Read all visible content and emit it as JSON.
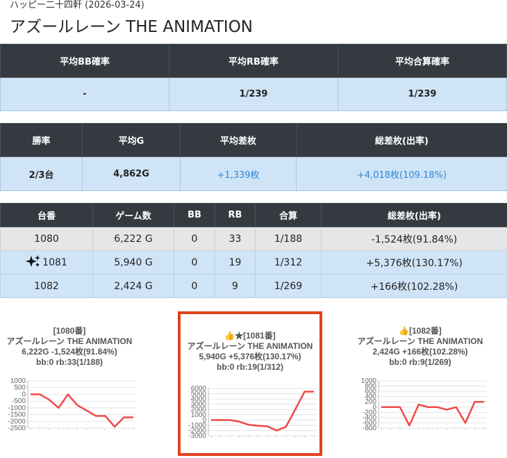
{
  "header": {
    "crumb": "ハッピー二十四軒 (2026-03-24)",
    "title": "アズールレーン THE ANIMATION"
  },
  "summary1": {
    "headers": [
      "平均BB確率",
      "平均RB確率",
      "平均合算確率"
    ],
    "values": [
      "-",
      "1/239",
      "1/239"
    ]
  },
  "summary2": {
    "headers": [
      "勝率",
      "平均G",
      "平均差枚",
      "総差枚(出率)"
    ],
    "values": [
      "2/3台",
      "4,862G",
      "+1,339枚",
      "+4,018枚(109.18%)"
    ]
  },
  "machines": {
    "headers": [
      "台番",
      "ゲーム数",
      "BB",
      "RB",
      "合算",
      "総差枚(出率)"
    ],
    "rows": [
      {
        "id": "1080",
        "games": "6,222 G",
        "bb": "0",
        "rb": "33",
        "combined": "1/188",
        "diff": "-1,524枚(91.84%)",
        "highlight": false
      },
      {
        "id": "1081",
        "games": "5,940 G",
        "bb": "0",
        "rb": "19",
        "combined": "1/312",
        "diff": "+5,376枚(130.17%)",
        "highlight": true
      },
      {
        "id": "1082",
        "games": "2,424 G",
        "bb": "0",
        "rb": "9",
        "combined": "1/269",
        "diff": "+166枚(102.28%)",
        "highlight": false
      }
    ]
  },
  "cards": [
    {
      "line1": "[1080番]",
      "line2": "アズールレーン THE ANIMATION",
      "line3": "6,222G -1,524枚(91.84%)",
      "line4": "bb:0 rb:33(1/188)"
    },
    {
      "line1": "👍★[1081番]",
      "line2": "アズールレーン THE ANIMATION",
      "line3": "5,940G +5,376枚(130.17%)",
      "line4": "bb:0 rb:19(1/312)"
    },
    {
      "line1": "👍[1082番]",
      "line2": "アズールレーン THE ANIMATION",
      "line3": "2,424G +166枚(102.28%)",
      "line4": "bb:0 rb:9(1/269)"
    }
  ],
  "chart_data": [
    {
      "type": "line",
      "series": [
        {
          "values": [
            0,
            0,
            -400,
            -1000,
            0,
            -800,
            -1200,
            -1600,
            -1600,
            -2400,
            -1700,
            -1700
          ]
        }
      ],
      "yticks": [
        1000,
        500,
        0,
        -500,
        -1000,
        -1500,
        -2000,
        -2500
      ],
      "ylim": [
        -2500,
        1000
      ],
      "color": "#f04848"
    },
    {
      "type": "line",
      "series": [
        {
          "values": [
            0,
            0,
            0,
            -300,
            -900,
            -1100,
            -1200,
            -2000,
            -1300,
            2000,
            5400,
            5400
          ]
        }
      ],
      "yticks": [
        6000,
        5000,
        4000,
        3000,
        2000,
        1000,
        0,
        -1000,
        -2000,
        -3000
      ],
      "ylim": [
        -3000,
        6000
      ],
      "color": "#f04848"
    },
    {
      "type": "line",
      "series": [
        {
          "values": [
            0,
            0,
            0,
            -700,
            100,
            0,
            0,
            -100,
            0,
            -600,
            200,
            200
          ]
        }
      ],
      "yticks": [
        1000,
        800,
        600,
        400,
        200,
        0,
        -200,
        -400,
        -600,
        -800
      ],
      "ylim": [
        -800,
        1000
      ],
      "color": "#f04848"
    }
  ]
}
